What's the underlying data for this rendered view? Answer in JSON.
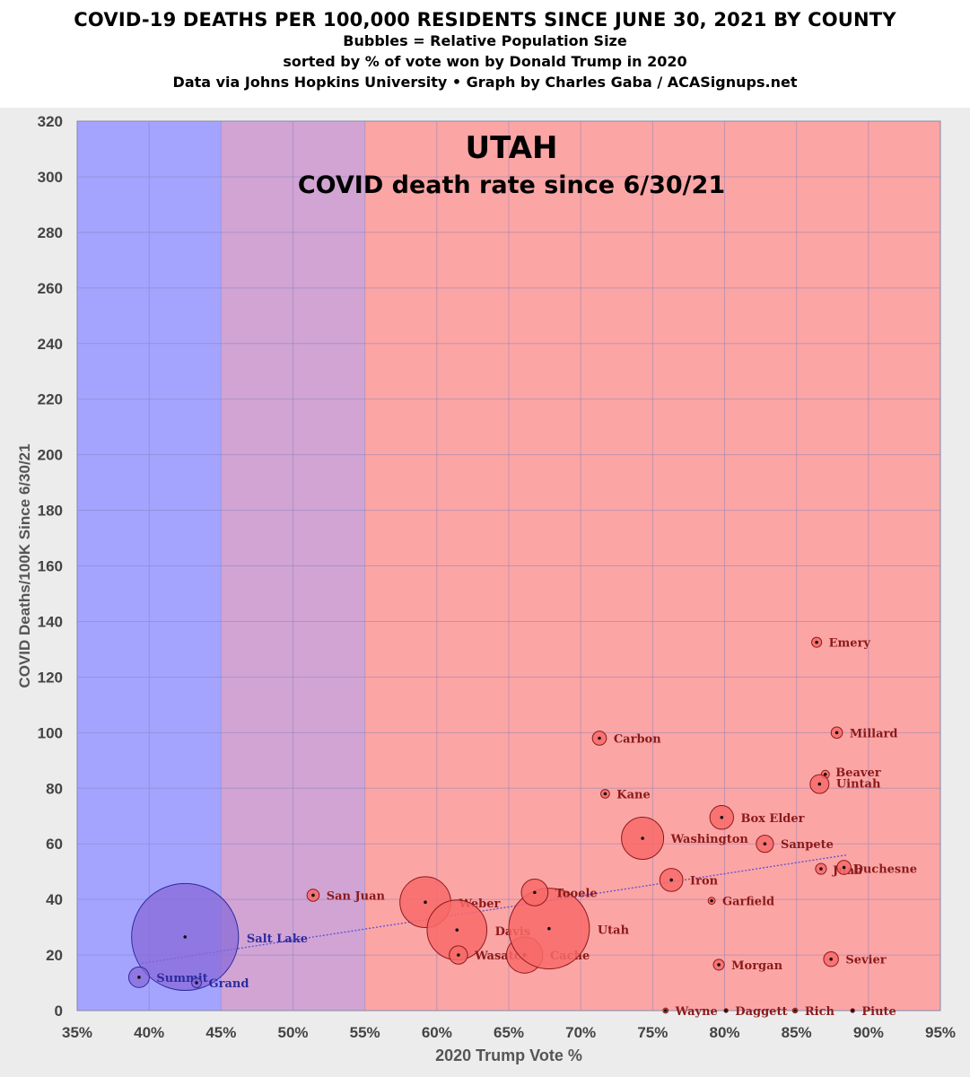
{
  "header": {
    "title": "COVID-19 DEATHS PER 100,000 RESIDENTS SINCE JUNE 30, 2021 BY COUNTY",
    "subtitle1": "Bubbles = Relative Population Size",
    "subtitle2": "sorted by % of vote won by Donald Trump in 2020",
    "subtitle3": "Data via Johns Hopkins University • Graph by Charles Gaba / ACASignups.net"
  },
  "chart_data": {
    "type": "scatter",
    "annotation_title": "UTAH",
    "annotation_subtitle": "COVID death rate since 6/30/21",
    "xlabel": "2020 Trump Vote %",
    "ylabel": "COVID Deaths/100K Since 6/30/21",
    "xlim": [
      35,
      95
    ],
    "ylim": [
      0,
      320
    ],
    "x_ticks": [
      "35%",
      "40%",
      "45%",
      "50%",
      "55%",
      "60%",
      "65%",
      "70%",
      "75%",
      "80%",
      "85%",
      "90%",
      "95%"
    ],
    "y_ticks": [
      "0",
      "20",
      "40",
      "60",
      "80",
      "100",
      "120",
      "140",
      "160",
      "180",
      "200",
      "220",
      "240",
      "260",
      "280",
      "300",
      "320"
    ],
    "grid": true,
    "bands": [
      {
        "from": 35,
        "to": 45,
        "color": "#a4a4ff"
      },
      {
        "from": 45,
        "to": 55,
        "color": "#d1a4d4"
      },
      {
        "from": 55,
        "to": 95,
        "color": "#fca5a5"
      }
    ],
    "colors": {
      "dem": "#2d2b9e",
      "dem_fill": "#8a6ad8",
      "rep": "#8b1a1a",
      "rep_fill": "#f86a6a",
      "trend": "#5a4fd4"
    },
    "trendline": {
      "x": [
        39.5,
        88.5
      ],
      "y": [
        17,
        56
      ]
    },
    "counties": [
      {
        "name": "Salt Lake",
        "x": 42.5,
        "y": 26.5,
        "size": 1160000,
        "party": "dem"
      },
      {
        "name": "Summit",
        "x": 39.3,
        "y": 12,
        "size": 43000,
        "party": "dem"
      },
      {
        "name": "Grand",
        "x": 43.3,
        "y": 10,
        "size": 9700,
        "party": "dem"
      },
      {
        "name": "San Juan",
        "x": 51.4,
        "y": 41.5,
        "size": 15000,
        "party": "rep"
      },
      {
        "name": "Weber",
        "x": 59.2,
        "y": 39,
        "size": 262000,
        "party": "rep"
      },
      {
        "name": "Davis",
        "x": 61.4,
        "y": 29,
        "size": 362000,
        "party": "rep"
      },
      {
        "name": "Wasatch",
        "x": 61.5,
        "y": 20,
        "size": 34000,
        "party": "rep"
      },
      {
        "name": "Cache",
        "x": 66.1,
        "y": 20,
        "size": 133000,
        "party": "rep"
      },
      {
        "name": "Utah",
        "x": 67.8,
        "y": 29.5,
        "size": 660000,
        "party": "rep"
      },
      {
        "name": "Tooele",
        "x": 66.8,
        "y": 42.5,
        "size": 72000,
        "party": "rep"
      },
      {
        "name": "Carbon",
        "x": 71.3,
        "y": 98,
        "size": 20000,
        "party": "rep"
      },
      {
        "name": "Kane",
        "x": 71.7,
        "y": 78,
        "size": 7700,
        "party": "rep"
      },
      {
        "name": "Washington",
        "x": 74.3,
        "y": 62,
        "size": 180000,
        "party": "rep"
      },
      {
        "name": "Iron",
        "x": 76.3,
        "y": 47,
        "size": 54000,
        "party": "rep"
      },
      {
        "name": "Garfield",
        "x": 79.1,
        "y": 39.5,
        "size": 5000,
        "party": "rep"
      },
      {
        "name": "Box Elder",
        "x": 79.8,
        "y": 69.5,
        "size": 57000,
        "party": "rep"
      },
      {
        "name": "Sanpete",
        "x": 82.8,
        "y": 60,
        "size": 30000,
        "party": "rep"
      },
      {
        "name": "Morgan",
        "x": 79.6,
        "y": 16.5,
        "size": 12000,
        "party": "rep"
      },
      {
        "name": "Emery",
        "x": 86.4,
        "y": 132.5,
        "size": 10000,
        "party": "rep"
      },
      {
        "name": "Millard",
        "x": 87.8,
        "y": 100,
        "size": 13000,
        "party": "rep"
      },
      {
        "name": "Beaver",
        "x": 87.0,
        "y": 85,
        "size": 6700,
        "party": "rep"
      },
      {
        "name": "Uintah",
        "x": 86.6,
        "y": 81.5,
        "size": 36000,
        "party": "rep"
      },
      {
        "name": "Juab",
        "x": 86.7,
        "y": 51,
        "size": 12000,
        "party": "rep"
      },
      {
        "name": "Duchesne",
        "x": 88.3,
        "y": 51.5,
        "size": 20000,
        "party": "rep"
      },
      {
        "name": "Sevier",
        "x": 87.4,
        "y": 18.5,
        "size": 22000,
        "party": "rep"
      },
      {
        "name": "Wayne",
        "x": 75.9,
        "y": 0,
        "size": 2700,
        "party": "rep"
      },
      {
        "name": "Daggett",
        "x": 80.1,
        "y": 0,
        "size": 1000,
        "party": "rep"
      },
      {
        "name": "Rich",
        "x": 84.9,
        "y": 0,
        "size": 2500,
        "party": "rep"
      },
      {
        "name": "Piute",
        "x": 88.9,
        "y": 0,
        "size": 1500,
        "party": "rep"
      }
    ]
  }
}
